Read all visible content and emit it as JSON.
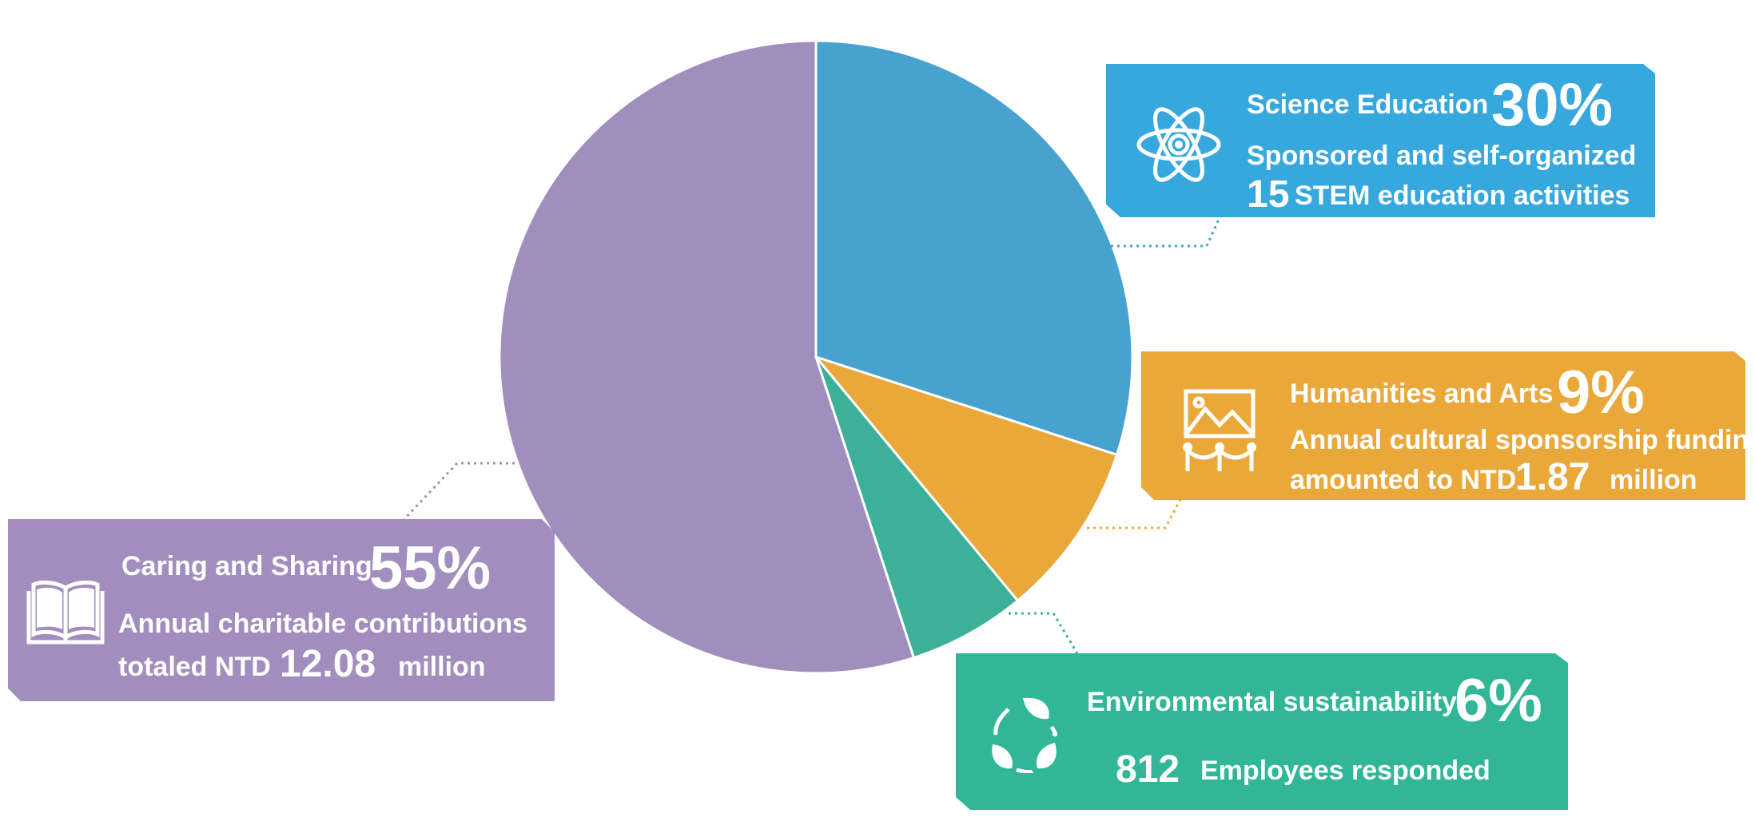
{
  "chart_data": {
    "type": "pie",
    "start": "12 o'clock, clockwise",
    "slices": [
      {
        "label": "Science Education",
        "value": 30,
        "color": "#47a2d0"
      },
      {
        "label": "Humanities and Arts",
        "value": 9,
        "color": "#eaa83a"
      },
      {
        "label": "Environmental sustainability",
        "value": 6,
        "color": "#3db099"
      },
      {
        "label": "Caring and Sharing",
        "value": 55,
        "color": "#a08fbd"
      }
    ]
  },
  "cards": {
    "science": {
      "title": "Science Education",
      "pct": "30%",
      "line1": "Sponsored and self-organized",
      "num": "15",
      "line2": "STEM education activities",
      "color": "#37a8de",
      "icon": "atom-icon"
    },
    "arts": {
      "title": "Humanities and Arts",
      "pct": "9%",
      "line1": "Annual cultural sponsorship funding",
      "line2a": "amounted to NTD",
      "num": "1.87",
      "line2b": "million",
      "color": "#eba83a",
      "icon": "gallery-icon"
    },
    "env": {
      "title": "Environmental sustainability",
      "pct": "6%",
      "num": "812",
      "line": "Employees responded",
      "color": "#31b797",
      "icon": "recycle-leaf-icon"
    },
    "caring": {
      "title": "Caring and Sharing",
      "pct": "55%",
      "line1": "Annual charitable contributions",
      "line2a": "totaled NTD",
      "num": "12.08",
      "line2b": "million",
      "color": "#a28ebe",
      "icon": "open-book-icon"
    }
  }
}
